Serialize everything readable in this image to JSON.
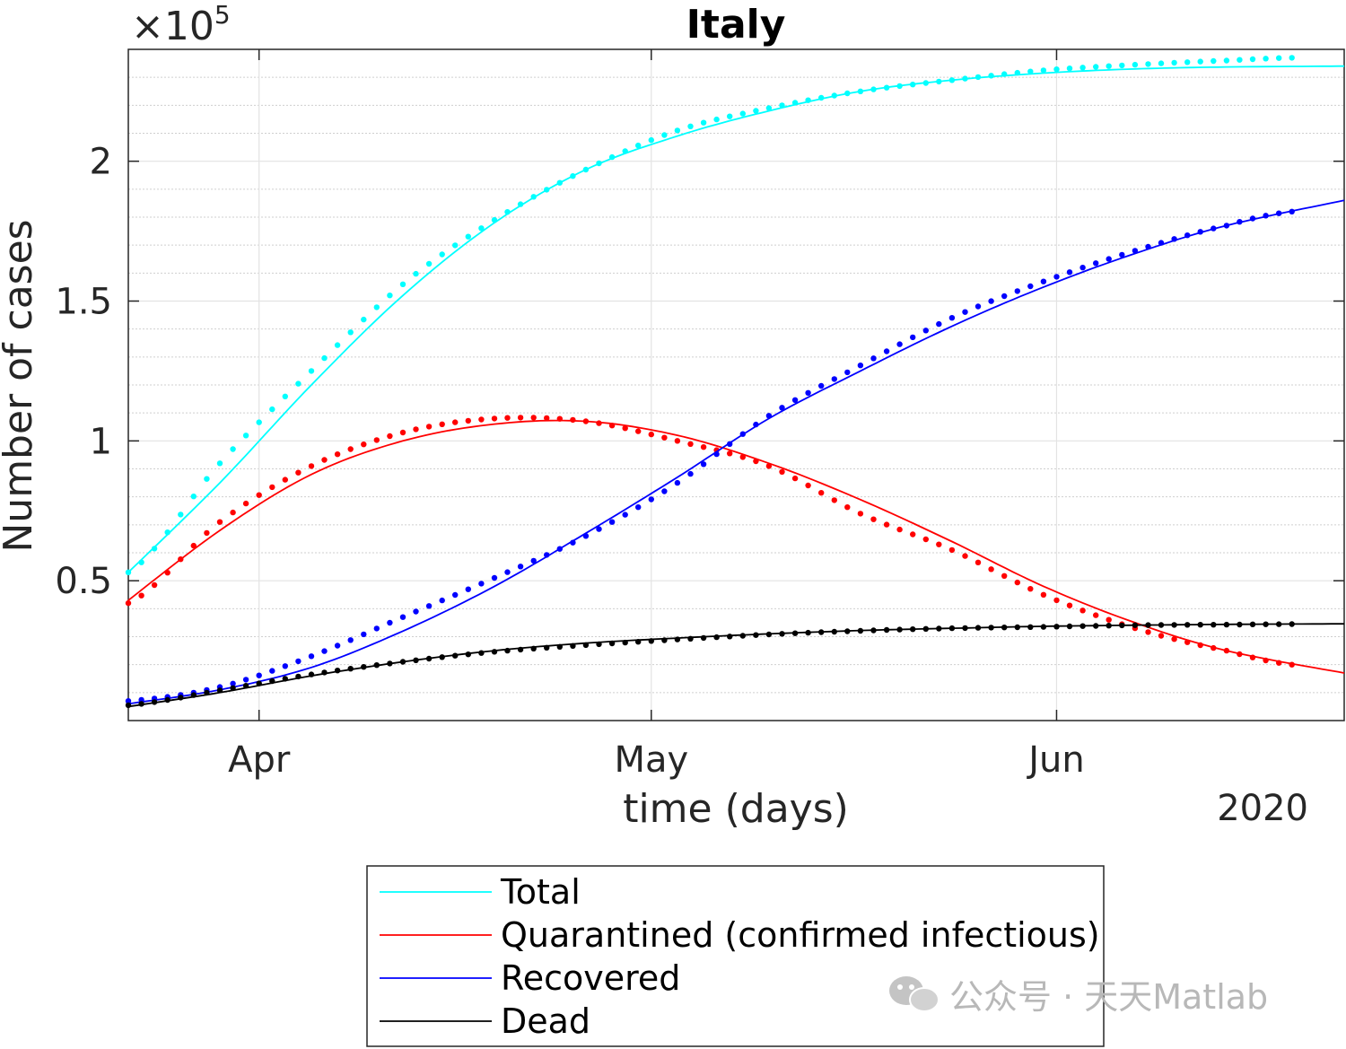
{
  "chart_data": {
    "type": "line",
    "title": "Italy",
    "xlabel": "time (days)",
    "ylabel": "Number of cases",
    "y_exponent_label": "×10",
    "y_exponent_power": "5",
    "year_label": "2020",
    "xlim": [
      "2020-03-22",
      "2020-06-23"
    ],
    "ylim": [
      0,
      240000
    ],
    "x_ticks": [
      {
        "date": "2020-04-01",
        "label": "Apr"
      },
      {
        "date": "2020-05-01",
        "label": "May"
      },
      {
        "date": "2020-06-01",
        "label": "Jun"
      }
    ],
    "y_ticks": [
      {
        "value": 50000,
        "label": "0.5"
      },
      {
        "value": 100000,
        "label": "1"
      },
      {
        "value": 150000,
        "label": "1.5"
      },
      {
        "value": 200000,
        "label": "2"
      }
    ],
    "grid": true,
    "minor_grid": true,
    "legend_position": "bottom-outside",
    "data_start": "2020-03-22",
    "data_end": "2020-06-19",
    "series": [
      {
        "name": "Total",
        "color": "#00ffff",
        "fitted": {
          "x": [
            "2020-03-22",
            "2020-03-29",
            "2020-04-05",
            "2020-04-12",
            "2020-04-19",
            "2020-04-26",
            "2020-05-03",
            "2020-05-10",
            "2020-05-17",
            "2020-05-24",
            "2020-05-31",
            "2020-06-07",
            "2020-06-14",
            "2020-06-23"
          ],
          "y": [
            53000,
            85000,
            120000,
            152000,
            178000,
            197000,
            209000,
            218000,
            225000,
            229000,
            231500,
            233000,
            233700,
            234000
          ]
        },
        "observed": {
          "x": [
            "2020-03-22",
            "2020-03-29",
            "2020-04-05",
            "2020-04-12",
            "2020-04-19",
            "2020-04-26",
            "2020-05-03",
            "2020-05-10",
            "2020-05-17",
            "2020-05-24",
            "2020-05-31",
            "2020-06-07",
            "2020-06-14",
            "2020-06-19"
          ],
          "y": [
            53000,
            92000,
            125000,
            156000,
            179000,
            197000,
            211000,
            219000,
            225000,
            229000,
            232500,
            234500,
            236000,
            237000
          ]
        }
      },
      {
        "name": "Quarantined (confirmed infectious)",
        "color": "#ff0000",
        "fitted": {
          "x": [
            "2020-03-22",
            "2020-03-29",
            "2020-04-05",
            "2020-04-12",
            "2020-04-19",
            "2020-04-26",
            "2020-05-03",
            "2020-05-10",
            "2020-05-17",
            "2020-05-24",
            "2020-05-31",
            "2020-06-07",
            "2020-06-14",
            "2020-06-23"
          ],
          "y": [
            43000,
            68000,
            88000,
            100000,
            106000,
            107000,
            102000,
            92000,
            79000,
            64000,
            48000,
            35000,
            25000,
            17000
          ]
        },
        "observed": {
          "x": [
            "2020-03-22",
            "2020-03-29",
            "2020-04-05",
            "2020-04-12",
            "2020-04-19",
            "2020-04-26",
            "2020-05-03",
            "2020-05-10",
            "2020-05-17",
            "2020-05-24",
            "2020-05-31",
            "2020-06-07",
            "2020-06-14",
            "2020-06-19"
          ],
          "y": [
            42000,
            71000,
            91000,
            103000,
            108000,
            107000,
            100000,
            91000,
            74000,
            61000,
            45000,
            33000,
            25000,
            20000
          ]
        }
      },
      {
        "name": "Recovered",
        "color": "#0000ff",
        "fitted": {
          "x": [
            "2020-03-22",
            "2020-03-29",
            "2020-04-05",
            "2020-04-12",
            "2020-04-19",
            "2020-04-26",
            "2020-05-03",
            "2020-05-10",
            "2020-05-17",
            "2020-05-24",
            "2020-05-31",
            "2020-06-07",
            "2020-06-14",
            "2020-06-23"
          ],
          "y": [
            6000,
            11000,
            19000,
            32000,
            48000,
            67000,
            87000,
            108000,
            125000,
            141000,
            155000,
            167000,
            177000,
            186000
          ]
        },
        "observed": {
          "x": [
            "2020-03-22",
            "2020-03-29",
            "2020-04-05",
            "2020-04-12",
            "2020-04-19",
            "2020-04-26",
            "2020-05-03",
            "2020-05-10",
            "2020-05-17",
            "2020-05-24",
            "2020-05-31",
            "2020-06-07",
            "2020-06-14",
            "2020-06-19"
          ],
          "y": [
            7000,
            12000,
            23000,
            37000,
            51000,
            66000,
            85000,
            109000,
            127000,
            144000,
            157000,
            168000,
            177000,
            182000
          ]
        }
      },
      {
        "name": "Dead",
        "color": "#000000",
        "fitted": {
          "x": [
            "2020-03-22",
            "2020-03-29",
            "2020-04-05",
            "2020-04-12",
            "2020-04-19",
            "2020-04-26",
            "2020-05-03",
            "2020-05-10",
            "2020-05-17",
            "2020-05-24",
            "2020-05-31",
            "2020-06-07",
            "2020-06-14",
            "2020-06-23"
          ],
          "y": [
            5000,
            10000,
            16000,
            21000,
            25000,
            27700,
            29500,
            31000,
            32200,
            33000,
            33700,
            34100,
            34400,
            34600
          ]
        },
        "observed": {
          "x": [
            "2020-03-22",
            "2020-03-29",
            "2020-04-05",
            "2020-04-12",
            "2020-04-19",
            "2020-04-26",
            "2020-05-03",
            "2020-05-10",
            "2020-05-17",
            "2020-05-24",
            "2020-05-31",
            "2020-06-07",
            "2020-06-14",
            "2020-06-19"
          ],
          "y": [
            5500,
            10800,
            16500,
            21000,
            24600,
            27000,
            29000,
            30800,
            32100,
            33000,
            33500,
            34100,
            34300,
            34500
          ]
        }
      }
    ]
  },
  "watermark": {
    "icon": "wechat-icon",
    "text": "公众号 · 天天Matlab"
  }
}
